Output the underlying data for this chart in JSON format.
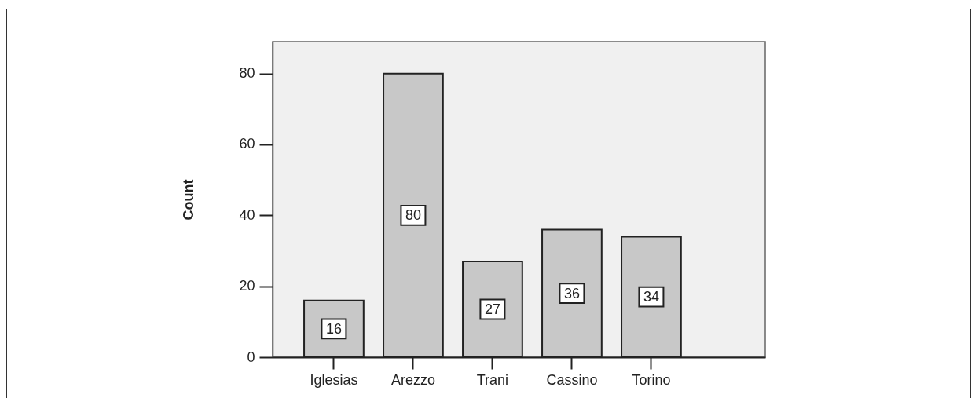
{
  "chart_data": {
    "type": "bar",
    "ylabel": "Count",
    "categories": [
      "Iglesias",
      "Arezzo",
      "Trani",
      "Cassino",
      "Torino"
    ],
    "values": [
      16,
      80,
      27,
      36,
      34
    ],
    "color": "#c8c8c8",
    "ylim": [
      0,
      89
    ],
    "yticks": [
      0,
      20,
      40,
      60,
      80
    ],
    "data_labels": true
  }
}
